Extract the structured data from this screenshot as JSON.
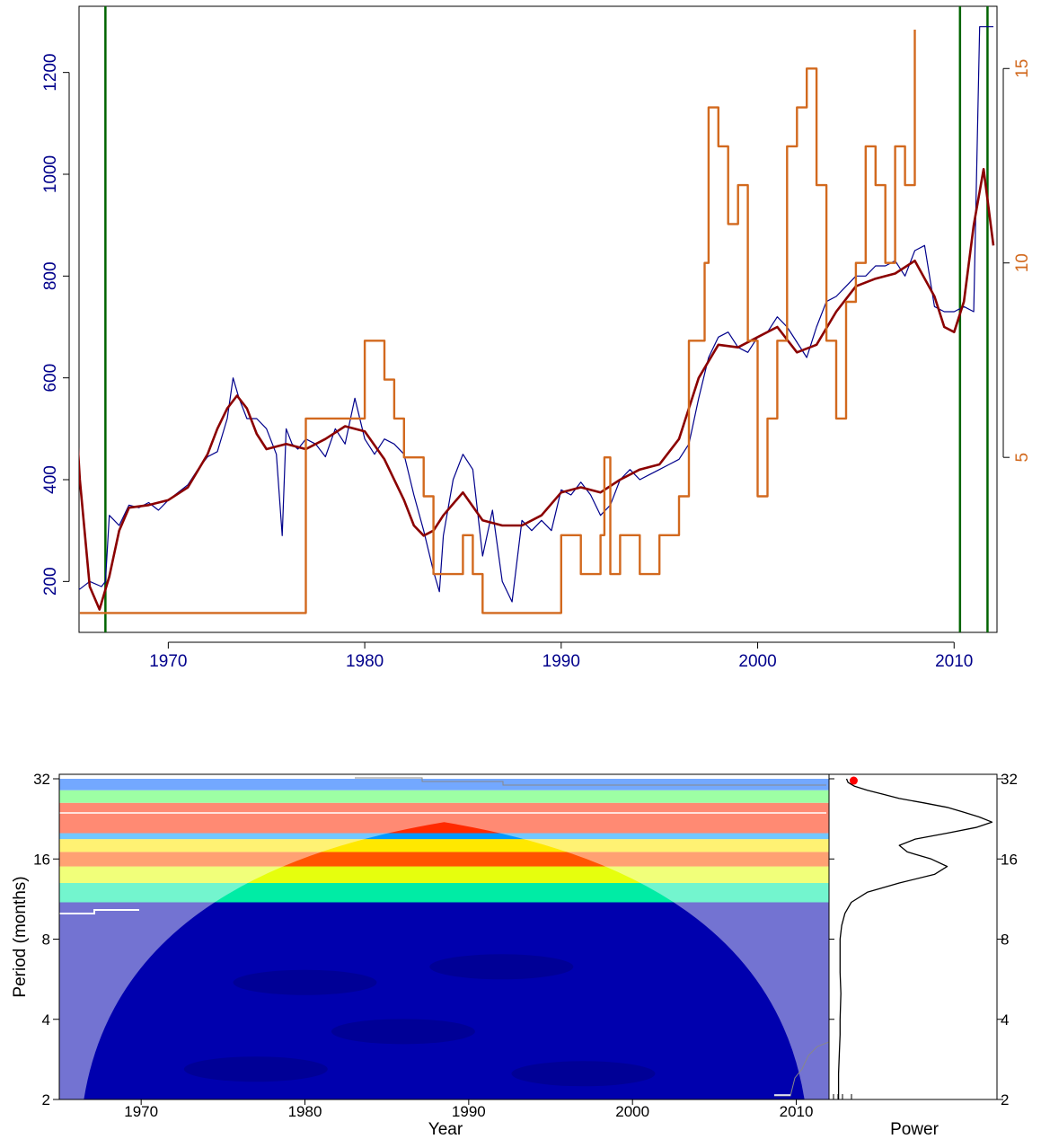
{
  "chart_data": [
    {
      "type": "line",
      "xlabel": "",
      "xlim": [
        1965,
        2012
      ],
      "x_ticks": [
        "1970",
        "1980",
        "1990",
        "2000",
        "2010"
      ],
      "y_left": {
        "ylim": [
          100,
          1330
        ],
        "ticks": [
          "200",
          "400",
          "600",
          "800",
          "1000",
          "1200"
        ],
        "color": "#00008b"
      },
      "y_right": {
        "ylim": [
          0.5,
          16.6
        ],
        "ticks": [
          "5",
          "10",
          "15"
        ],
        "color": "#d2691e"
      },
      "vertical_lines": {
        "x": [
          1966.8,
          2010.3,
          2011.7
        ],
        "color": "#006400"
      },
      "series": [
        {
          "axis": "left",
          "color": "#00008b",
          "style": "thin",
          "x": [
            1965.0,
            1965.5,
            1966.0,
            1966.6,
            1966.8,
            1967.0,
            1967.5,
            1968.0,
            1968.5,
            1969.0,
            1969.5,
            1970.0,
            1970.5,
            1971.0,
            1971.5,
            1972.0,
            1972.5,
            1973.0,
            1973.3,
            1973.6,
            1974.0,
            1974.5,
            1975.0,
            1975.5,
            1975.8,
            1976.0,
            1976.3,
            1976.6,
            1977.0,
            1977.5,
            1978.0,
            1978.5,
            1979.0,
            1979.5,
            1980.0,
            1980.5,
            1981.0,
            1981.5,
            1982.0,
            1982.5,
            1983.0,
            1983.5,
            1983.8,
            1984.0,
            1984.5,
            1985.0,
            1985.5,
            1986.0,
            1986.5,
            1987.0,
            1987.5,
            1988.0,
            1988.5,
            1989.0,
            1989.5,
            1990.0,
            1990.5,
            1991.0,
            1991.5,
            1992.0,
            1992.5,
            1993.0,
            1993.5,
            1994.0,
            1994.5,
            1995.0,
            1995.5,
            1996.0,
            1996.5,
            1997.0,
            1997.5,
            1998.0,
            1998.5,
            1999.0,
            1999.5,
            2000.0,
            2000.5,
            2001.0,
            2001.5,
            2002.0,
            2002.5,
            2003.0,
            2003.5,
            2004.0,
            2004.5,
            2005.0,
            2005.5,
            2006.0,
            2006.5,
            2007.0,
            2007.5,
            2008.0,
            2008.5,
            2009.0,
            2009.5,
            2010.0,
            2010.5,
            2011.0,
            2011.3,
            2012.0
          ],
          "y": [
            195,
            185,
            200,
            190,
            200,
            330,
            310,
            350,
            345,
            355,
            340,
            360,
            375,
            390,
            420,
            445,
            455,
            520,
            600,
            560,
            520,
            520,
            500,
            450,
            290,
            500,
            470,
            460,
            480,
            470,
            445,
            500,
            470,
            560,
            480,
            450,
            480,
            470,
            450,
            370,
            300,
            220,
            180,
            290,
            400,
            450,
            420,
            250,
            340,
            200,
            160,
            320,
            300,
            320,
            300,
            380,
            370,
            395,
            370,
            330,
            350,
            400,
            420,
            400,
            410,
            420,
            430,
            440,
            470,
            560,
            640,
            680,
            690,
            660,
            650,
            680,
            690,
            720,
            700,
            670,
            640,
            700,
            750,
            760,
            780,
            800,
            800,
            820,
            820,
            830,
            800,
            850,
            860,
            740,
            730,
            730,
            740,
            730,
            1290,
            1290
          ]
        },
        {
          "axis": "left",
          "color": "#8b0000",
          "style": "thick",
          "x": [
            1965.0,
            1965.5,
            1966.0,
            1966.5,
            1967.0,
            1967.5,
            1968.0,
            1969.0,
            1970.0,
            1971.0,
            1972.0,
            1972.5,
            1973.0,
            1973.5,
            1974.0,
            1974.5,
            1975.0,
            1976.0,
            1977.0,
            1978.0,
            1979.0,
            1980.0,
            1981.0,
            1982.0,
            1982.5,
            1983.0,
            1983.5,
            1984.0,
            1985.0,
            1986.0,
            1987.0,
            1988.0,
            1989.0,
            1990.0,
            1991.0,
            1992.0,
            1993.0,
            1994.0,
            1995.0,
            1996.0,
            1997.0,
            1998.0,
            1999.0,
            2000.0,
            2001.0,
            2002.0,
            2003.0,
            2004.0,
            2005.0,
            2006.0,
            2007.0,
            2008.0,
            2009.0,
            2009.5,
            2010.0,
            2010.5,
            2011.0,
            2011.5,
            2012.0
          ],
          "y": [
            720,
            400,
            190,
            145,
            210,
            300,
            345,
            350,
            360,
            385,
            450,
            500,
            540,
            565,
            540,
            490,
            460,
            470,
            460,
            480,
            505,
            495,
            440,
            360,
            310,
            290,
            300,
            330,
            375,
            320,
            310,
            310,
            330,
            375,
            385,
            375,
            400,
            420,
            430,
            480,
            600,
            665,
            660,
            680,
            700,
            650,
            665,
            730,
            780,
            795,
            805,
            830,
            760,
            700,
            690,
            750,
            900,
            1010,
            860
          ]
        },
        {
          "axis": "right",
          "color": "#d2691e",
          "style": "step",
          "x": [
            1965.5,
            1967.0,
            1970.0,
            1975.0,
            1977.0,
            1979.0,
            1980.0,
            1981.0,
            1981.5,
            1982.0,
            1983.0,
            1983.5,
            1984.0,
            1985.0,
            1985.5,
            1986.0,
            1988.0,
            1990.0,
            1991.0,
            1992.0,
            1992.2,
            1992.5,
            1993.0,
            1994.0,
            1995.0,
            1996.0,
            1996.5,
            1997.0,
            1997.3,
            1997.5,
            1998.0,
            1998.5,
            1999.0,
            1999.5,
            2000.0,
            2000.5,
            2001.0,
            2001.5,
            2002.0,
            2002.5,
            2003.0,
            2003.5,
            2004.0,
            2004.5,
            2005.0,
            2005.5,
            2006.0,
            2006.5,
            2007.0,
            2007.5,
            2008.0
          ],
          "y": [
            1.0,
            1.0,
            1.0,
            1.0,
            6,
            6,
            8,
            7,
            6,
            5,
            4,
            2,
            2,
            3,
            2,
            1,
            1,
            3,
            2,
            3,
            5,
            2,
            3,
            2,
            3,
            4,
            8,
            8,
            10,
            14,
            13,
            11,
            12,
            8,
            4,
            6,
            8,
            13,
            14,
            15,
            12,
            8,
            6,
            9,
            10,
            13,
            12,
            10,
            13,
            12,
            16
          ]
        }
      ]
    },
    {
      "type": "heatmap",
      "xlabel": "Year",
      "ylabel": "Period (months)",
      "xlim": [
        1965,
        2012
      ],
      "x_ticks": [
        "1970",
        "1980",
        "1990",
        "2000",
        "2010"
      ],
      "y_ticks": [
        "2",
        "4",
        "8",
        "16",
        "32"
      ],
      "y_scale": "log2",
      "colormap": [
        "#00008b",
        "#0000ff",
        "#00bfff",
        "#00ff7f",
        "#ffff00",
        "#ff8c00",
        "#ff0000"
      ],
      "bands": [
        {
          "period_from": 2,
          "period_to": 11,
          "level": 0.05
        },
        {
          "period_from": 11,
          "period_to": 13,
          "level": 0.45
        },
        {
          "period_from": 13,
          "period_to": 15,
          "level": 0.65
        },
        {
          "period_from": 15,
          "period_to": 17,
          "level": 0.9
        },
        {
          "period_from": 17,
          "period_to": 19,
          "level": 0.7
        },
        {
          "period_from": 19,
          "period_to": 20,
          "level": 0.3
        },
        {
          "period_from": 20,
          "period_to": 26,
          "level": 0.95
        },
        {
          "period_from": 26,
          "period_to": 29,
          "level": 0.55
        },
        {
          "period_from": 29,
          "period_to": 32,
          "level": 0.25
        }
      ],
      "cone_of_influence": {
        "apex_year": 1988.5,
        "apex_period": 22,
        "base_left_year": 1966.5,
        "base_right_year": 2010.5
      }
    },
    {
      "type": "line",
      "xlabel": "Power",
      "y_ticks": [
        "2",
        "4",
        "8",
        "16",
        "32"
      ],
      "y_scale": "log2",
      "series": [
        {
          "color": "#000000",
          "period": [
            2,
            2.5,
            3,
            3.5,
            4,
            5,
            6,
            7,
            8,
            9,
            10,
            11,
            12,
            13,
            14,
            15,
            16,
            17,
            18,
            19,
            20,
            21,
            22,
            23,
            24,
            25,
            26,
            27,
            28,
            29,
            30,
            31,
            32
          ],
          "power": [
            0.02,
            0.02,
            0.025,
            0.03,
            0.03,
            0.035,
            0.03,
            0.03,
            0.03,
            0.04,
            0.06,
            0.1,
            0.2,
            0.4,
            0.62,
            0.7,
            0.6,
            0.45,
            0.4,
            0.5,
            0.7,
            0.88,
            0.98,
            0.9,
            0.8,
            0.7,
            0.55,
            0.4,
            0.3,
            0.2,
            0.12,
            0.08,
            0.07
          ]
        }
      ],
      "highlight_point": {
        "period": 31.5,
        "power": 0.07,
        "color": "#ff0000"
      }
    }
  ]
}
